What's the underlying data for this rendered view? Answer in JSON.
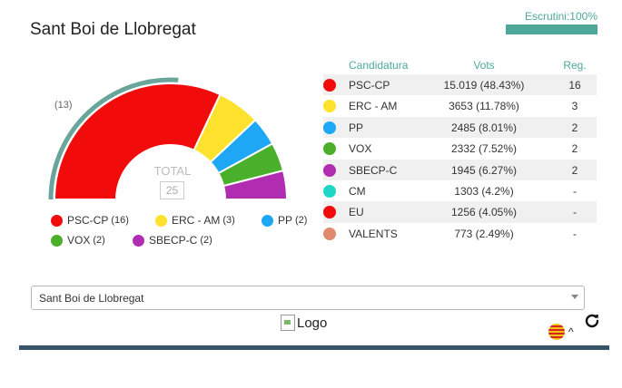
{
  "title": "Sant Boi de Llobregat",
  "scrutiny": {
    "label": "Escrutini:100%",
    "percent": 100,
    "color": "#4da89a"
  },
  "hemicycle": {
    "previous_label": "(13)",
    "total_label": "TOTAL",
    "total_seats": "25",
    "previous_seats": 13
  },
  "legend": [
    {
      "name": "PSC-CP",
      "seats": "(16)",
      "color": "#f20b0b"
    },
    {
      "name": "ERC - AM",
      "seats": "(3)",
      "color": "#ffe22e"
    },
    {
      "name": "PP",
      "seats": "(2)",
      "color": "#1ea7f4"
    },
    {
      "name": "VOX",
      "seats": "(2)",
      "color": "#4ab02b"
    },
    {
      "name": "SBECP-C",
      "seats": "(2)",
      "color": "#b02cb1"
    }
  ],
  "table": {
    "headers": {
      "party": "Candidatura",
      "votes": "Vots",
      "seats": "Reg."
    },
    "rows": [
      {
        "party": "PSC-CP",
        "votes": "15.019 (48.43%)",
        "seats": "16",
        "color": "#f20b0b"
      },
      {
        "party": "ERC - AM",
        "votes": "3653 (11.78%)",
        "seats": "3",
        "color": "#ffe22e"
      },
      {
        "party": "PP",
        "votes": "2485 (8.01%)",
        "seats": "2",
        "color": "#1ea7f4"
      },
      {
        "party": "VOX",
        "votes": "2332 (7.52%)",
        "seats": "2",
        "color": "#4ab02b"
      },
      {
        "party": "SBECP-C",
        "votes": "1945 (6.27%)",
        "seats": "2",
        "color": "#b02cb1"
      },
      {
        "party": "CM",
        "votes": "1303 (4.2%)",
        "seats": "-",
        "color": "#1ed6c8"
      },
      {
        "party": "EU",
        "votes": "1256 (4.05%)",
        "seats": "-",
        "color": "#f20b0b"
      },
      {
        "party": "VALENTS",
        "votes": "773 (2.49%)",
        "seats": "-",
        "color": "#e08a6e"
      }
    ]
  },
  "select": {
    "value": "Sant Boi de Llobregat"
  },
  "logo": {
    "alt": "Logo"
  },
  "caret_glyph": "^",
  "icons": {
    "refresh": "refresh-icon",
    "flag": "catalan-flag-icon"
  }
}
